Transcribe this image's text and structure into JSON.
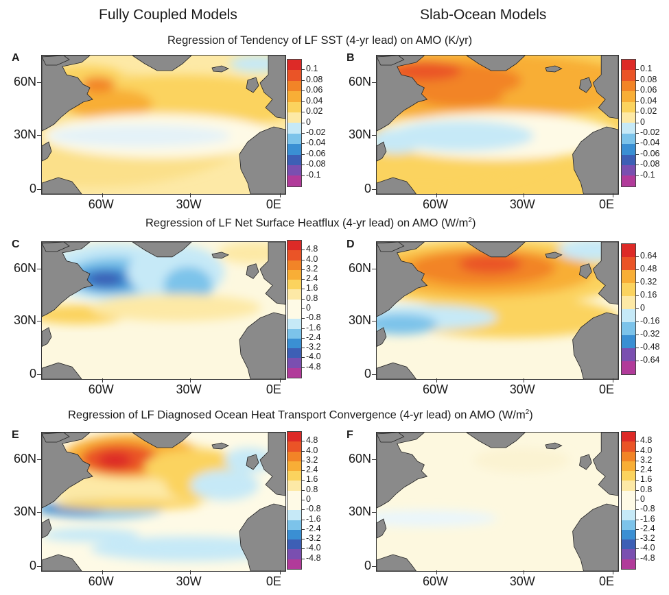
{
  "column_headers": {
    "left": "Fully Coupled Models",
    "right": "Slab-Ocean Models"
  },
  "rows": [
    {
      "title": "Regression of Tendency of LF SST (4-yr lead) on AMO (K/yr)",
      "title_sup": "",
      "title_tail": ""
    },
    {
      "title": "Regression of LF Net Surface Heatflux (4-yr lead) on AMO (W/m",
      "title_sup": "2",
      "title_tail": ")"
    },
    {
      "title": "Regression of LF Diagnosed Ocean Heat Transport Convergence (4-yr lead) on AMO (W/m",
      "title_sup": "2",
      "title_tail": ")"
    }
  ],
  "panels": [
    {
      "letter": "A",
      "ticks": [
        "0.1",
        "0.08",
        "0.06",
        "0.04",
        "0.02",
        "0",
        "-0.02",
        "-0.04",
        "-0.06",
        "-0.08",
        "-0.1"
      ]
    },
    {
      "letter": "B",
      "ticks": [
        "0.1",
        "0.08",
        "0.06",
        "0.04",
        "0.02",
        "0",
        "-0.02",
        "-0.04",
        "-0.06",
        "-0.08",
        "-0.1"
      ]
    },
    {
      "letter": "C",
      "ticks": [
        "4.8",
        "4.0",
        "3.2",
        "2.4",
        "1.6",
        "0.8",
        "0",
        "-0.8",
        "-1.6",
        "-2.4",
        "-3.2",
        "-4.0",
        "-4.8"
      ]
    },
    {
      "letter": "D",
      "ticks": [
        "0.64",
        "0.48",
        "0.32",
        "0.16",
        "0",
        "-0.16",
        "-0.32",
        "-0.48",
        "-0.64"
      ]
    },
    {
      "letter": "E",
      "ticks": [
        "4.8",
        "4.0",
        "3.2",
        "2.4",
        "1.6",
        "0.8",
        "0",
        "-0.8",
        "-1.6",
        "-2.4",
        "-3.2",
        "-4.0",
        "-4.8"
      ]
    },
    {
      "letter": "F",
      "ticks": [
        "4.8",
        "4.0",
        "3.2",
        "2.4",
        "1.6",
        "0.8",
        "0",
        "-0.8",
        "-1.6",
        "-2.4",
        "-3.2",
        "-4.0",
        "-4.8"
      ]
    }
  ],
  "axes": {
    "lat_labels": [
      "60N",
      "30N",
      "0"
    ],
    "lon_labels": [
      "60W",
      "30W",
      "0E"
    ]
  },
  "colors": {
    "land": "#8a8a8a",
    "ocean_neutral": "#fdf8df",
    "scale": [
      "#b13b9a",
      "#7a4fb0",
      "#3d5fb5",
      "#3a8fd3",
      "#7cc3ea",
      "#c6e9f7",
      "#fefae6",
      "#fde9a6",
      "#fbd35e",
      "#f8ae36",
      "#f28427",
      "#ea5427",
      "#dd2a27"
    ]
  }
}
